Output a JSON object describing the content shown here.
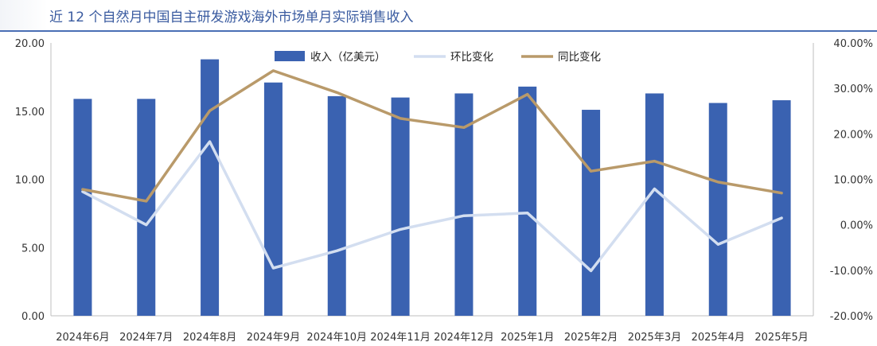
{
  "title": "近 12 个自然月中国自主研发游戏海外市场单月实际销售收入",
  "colors": {
    "bar": "#3a62b1",
    "mom_line": "#d3def0",
    "yoy_line": "#b99a6a",
    "axis": "#bfbfbf",
    "title": "#3a5ba0"
  },
  "chart_data": {
    "type": "bar",
    "title": "近 12 个自然月中国自主研发游戏海外市场单月实际销售收入",
    "categories": [
      "2024年6月",
      "2024年7月",
      "2024年8月",
      "2024年9月",
      "2024年10月",
      "2024年11月",
      "2024年12月",
      "2025年1月",
      "2025年2月",
      "2025年3月",
      "2025年4月",
      "2025年5月"
    ],
    "y_left": {
      "min": 0,
      "max": 20,
      "ticks": [
        "0.00",
        "5.00",
        "10.00",
        "15.00",
        "20.00"
      ]
    },
    "y_right": {
      "min": -20,
      "max": 40,
      "ticks": [
        "-20.00%",
        "-10.00%",
        "0.00%",
        "10.00%",
        "20.00%",
        "30.00%",
        "40.00%"
      ]
    },
    "legend_position": "top-center",
    "series": [
      {
        "name": "收入（亿美元）",
        "type": "bar",
        "axis": "left",
        "values": [
          15.9,
          15.9,
          18.8,
          17.1,
          16.1,
          16.0,
          16.3,
          16.8,
          15.1,
          16.3,
          15.6,
          15.8
        ]
      },
      {
        "name": "环比变化",
        "type": "line",
        "axis": "right",
        "values": [
          7.3,
          0.0,
          18.3,
          -9.5,
          -5.7,
          -1.0,
          2.0,
          2.6,
          -10.1,
          7.9,
          -4.3,
          1.5
        ]
      },
      {
        "name": "同比变化",
        "type": "line",
        "axis": "right",
        "values": [
          7.8,
          5.2,
          25.1,
          33.9,
          29.1,
          23.4,
          21.4,
          28.7,
          11.8,
          14.0,
          9.4,
          7.0
        ]
      }
    ]
  }
}
